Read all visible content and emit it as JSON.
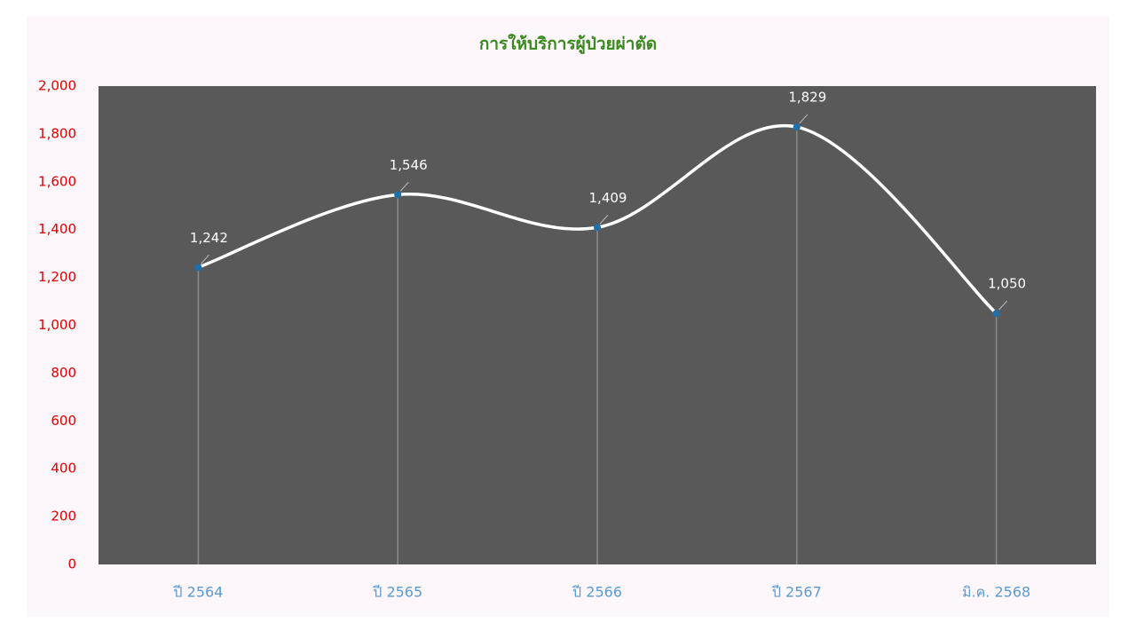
{
  "chart_data": {
    "type": "line",
    "title": "การให้บริการผู้ป่วยผ่าตัด",
    "categories": [
      "ปี 2564",
      "ปี 2565",
      "ปี 2566",
      "ปี 2567",
      "มิ.ค. 2568"
    ],
    "values": [
      1242,
      1546,
      1409,
      1829,
      1050
    ],
    "value_labels": [
      "1,242",
      "1,546",
      "1,409",
      "1,829",
      "1,050"
    ],
    "color": "#ffffff",
    "marker_color": "#1f6fa8",
    "smooth": true,
    "drop_lines": true,
    "ylim": [
      0,
      2000
    ],
    "yticks": [
      0,
      200,
      400,
      600,
      800,
      {
        "value": 1000,
        "label": "1,000"
      },
      {
        "value": 1200,
        "label": "1,200"
      },
      {
        "value": 1400,
        "label": "1,400"
      },
      {
        "value": 1600,
        "label": "1,600"
      },
      {
        "value": 1800,
        "label": "1,800"
      },
      {
        "value": 2000,
        "label": "2,000"
      }
    ]
  }
}
